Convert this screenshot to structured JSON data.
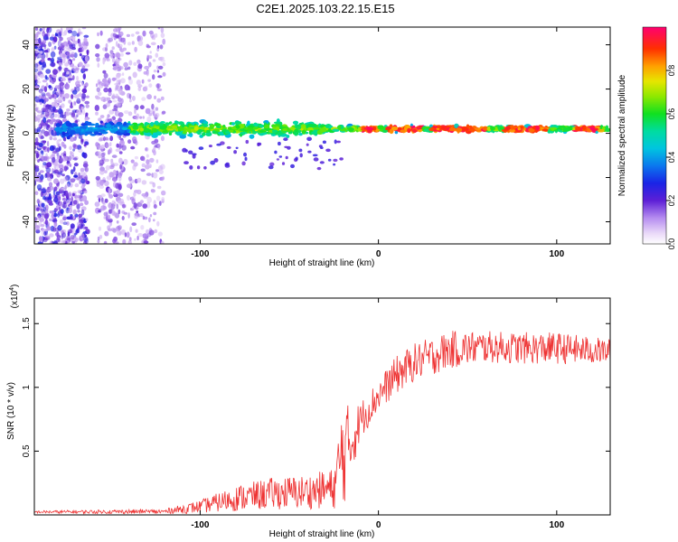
{
  "title": "C2E1.2025.103.22.15.E15",
  "chart_data": [
    {
      "type": "heatmap",
      "xlabel": "Height of straight line (km)",
      "ylabel": "Frequency (Hz)",
      "xlim": [
        -193,
        130
      ],
      "ylim": [
        -50,
        48
      ],
      "x_ticks": [
        -100,
        0,
        100
      ],
      "y_ticks": [
        -40,
        -20,
        0,
        20,
        40
      ],
      "colorbar": {
        "label": "Normalized spectral amplitude",
        "range": [
          0,
          1
        ],
        "ticks": [
          0.0,
          0.2,
          0.4,
          0.6,
          0.8
        ]
      },
      "features": {
        "noise_band_x": [
          -193,
          -120
        ],
        "signal_center_hz": 2,
        "signal_spread_hz": {
          "x_-120_to_-30": 8,
          "x_-30_to_130": 3
        },
        "peak_segments_x": [
          [
            -10,
            0
          ],
          [
            5,
            25
          ],
          [
            30,
            60
          ],
          [
            70,
            95
          ],
          [
            110,
            125
          ]
        ]
      }
    },
    {
      "type": "line",
      "xlabel": "Height of straight line (km)",
      "ylabel": "SNR (10 * v/v)",
      "y_scale_label": "(x10",
      "y_scale_exp": "4",
      "y_scale_close": ")",
      "xlim": [
        -193,
        130
      ],
      "ylim": [
        0,
        1.7
      ],
      "x_ticks": [
        -100,
        0,
        100
      ],
      "y_ticks": [
        0.5,
        1.0,
        1.5
      ],
      "series": [
        {
          "color": "#ee3333",
          "envelope": [
            {
              "x": -193,
              "base": 0.02,
              "amp": 0.02
            },
            {
              "x": -120,
              "base": 0.02,
              "amp": 0.04
            },
            {
              "x": -100,
              "base": 0.05,
              "amp": 0.1
            },
            {
              "x": -80,
              "base": 0.1,
              "amp": 0.2
            },
            {
              "x": -60,
              "base": 0.13,
              "amp": 0.25
            },
            {
              "x": -40,
              "base": 0.14,
              "amp": 0.27
            },
            {
              "x": -25,
              "base": 0.16,
              "amp": 0.32
            },
            {
              "x": -20,
              "base": 0.35,
              "amp": 0.9
            },
            {
              "x": -15,
              "base": 0.5,
              "amp": 0.5
            },
            {
              "x": -10,
              "base": 0.7,
              "amp": 0.3
            },
            {
              "x": 0,
              "base": 0.9,
              "amp": 0.25
            },
            {
              "x": 10,
              "base": 1.05,
              "amp": 0.3
            },
            {
              "x": 20,
              "base": 1.15,
              "amp": 0.3
            },
            {
              "x": 40,
              "base": 1.25,
              "amp": 0.3
            },
            {
              "x": 60,
              "base": 1.28,
              "amp": 0.25
            },
            {
              "x": 80,
              "base": 1.27,
              "amp": 0.25
            },
            {
              "x": 100,
              "base": 1.27,
              "amp": 0.25
            },
            {
              "x": 130,
              "base": 1.25,
              "amp": 0.2
            }
          ]
        }
      ]
    }
  ]
}
